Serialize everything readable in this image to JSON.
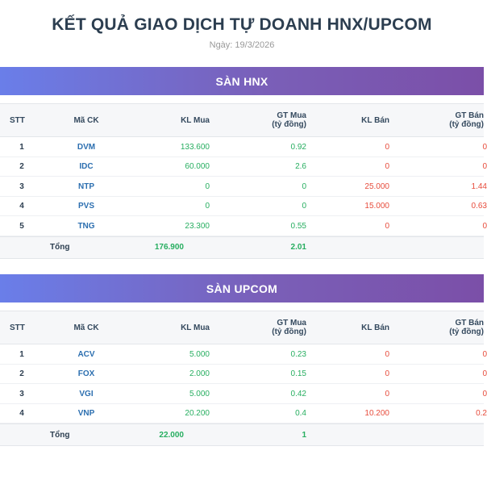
{
  "header": {
    "title": "KẾT QUẢ GIAO DỊCH TỰ DOANH HNX/UPCOM",
    "date": "Ngày: 19/3/2026"
  },
  "columns": {
    "stt": "STT",
    "mack": "Mã CK",
    "klmua": "KL Mua",
    "gtmua_line1": "GT Mua",
    "gtmua_line2": "(tỷ đồng)",
    "klban": "KL Bán",
    "gtban_line1": "GT Bán",
    "gtban_line2": "(tỷ đồng)"
  },
  "total_label": "Tổng",
  "hnx": {
    "title": "SÀN HNX",
    "rows": [
      {
        "stt": "1",
        "mack": "DVM",
        "klmua": "133.600",
        "gtmua": "0.92",
        "klban": "0",
        "gtban": "0"
      },
      {
        "stt": "2",
        "mack": "IDC",
        "klmua": "60.000",
        "gtmua": "2.6",
        "klban": "0",
        "gtban": "0"
      },
      {
        "stt": "3",
        "mack": "NTP",
        "klmua": "0",
        "gtmua": "0",
        "klban": "25.000",
        "gtban": "1.44"
      },
      {
        "stt": "4",
        "mack": "PVS",
        "klmua": "0",
        "gtmua": "0",
        "klban": "15.000",
        "gtban": "0.63"
      },
      {
        "stt": "5",
        "mack": "TNG",
        "klmua": "23.300",
        "gtmua": "0.55",
        "klban": "0",
        "gtban": "0"
      }
    ],
    "total": {
      "klmua": "176.900",
      "gtmua": "2.01"
    }
  },
  "upcom": {
    "title": "SÀN UPCOM",
    "rows": [
      {
        "stt": "1",
        "mack": "ACV",
        "klmua": "5.000",
        "gtmua": "0.23",
        "klban": "0",
        "gtban": "0"
      },
      {
        "stt": "2",
        "mack": "FOX",
        "klmua": "2.000",
        "gtmua": "0.15",
        "klban": "0",
        "gtban": "0"
      },
      {
        "stt": "3",
        "mack": "VGI",
        "klmua": "5.000",
        "gtmua": "0.42",
        "klban": "0",
        "gtban": "0"
      },
      {
        "stt": "4",
        "mack": "VNP",
        "klmua": "20.200",
        "gtmua": "0.4",
        "klban": "10.200",
        "gtban": "0.2"
      }
    ],
    "total": {
      "klmua": "22.000",
      "gtmua": "1"
    }
  },
  "colors": {
    "banner_start": "#6a7ee9",
    "banner_end": "#7b4fa8",
    "buy": "#27ae60",
    "sell": "#e74c3c",
    "ticker": "#2c6fb0"
  }
}
